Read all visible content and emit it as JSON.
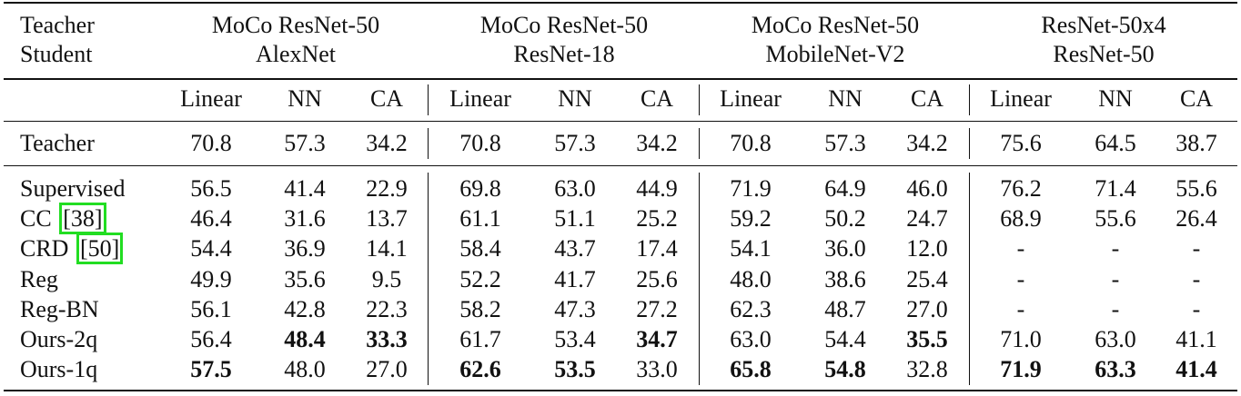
{
  "table": {
    "corner": [
      "Teacher",
      "Student"
    ],
    "groups": [
      {
        "teacher": "MoCo ResNet-50",
        "student": "AlexNet",
        "metrics": [
          "Linear",
          "NN",
          "CA"
        ]
      },
      {
        "teacher": "MoCo ResNet-50",
        "student": "ResNet-18",
        "metrics": [
          "Linear",
          "NN",
          "CA"
        ]
      },
      {
        "teacher": "MoCo ResNet-50",
        "student": "MobileNet-V2",
        "metrics": [
          "Linear",
          "NN",
          "CA"
        ]
      },
      {
        "teacher": "ResNet-50x4",
        "student": "ResNet-50",
        "metrics": [
          "Linear",
          "NN",
          "CA"
        ]
      }
    ],
    "teacher_row": {
      "label": "Teacher",
      "values": [
        "70.8",
        "57.3",
        "34.2",
        "70.8",
        "57.3",
        "34.2",
        "70.8",
        "57.3",
        "34.2",
        "75.6",
        "64.5",
        "38.7"
      ]
    },
    "rows": [
      {
        "label": "Supervised",
        "values": [
          "56.5",
          "41.4",
          "22.9",
          "69.8",
          "63.0",
          "44.9",
          "71.9",
          "64.9",
          "46.0",
          "76.2",
          "71.4",
          "55.6"
        ],
        "bold": []
      },
      {
        "label": "CC",
        "cite": "[38]",
        "values": [
          "46.4",
          "31.6",
          "13.7",
          "61.1",
          "51.1",
          "25.2",
          "59.2",
          "50.2",
          "24.7",
          "68.9",
          "55.6",
          "26.4"
        ],
        "bold": []
      },
      {
        "label": "CRD",
        "cite": "[50]",
        "values": [
          "54.4",
          "36.9",
          "14.1",
          "58.4",
          "43.7",
          "17.4",
          "54.1",
          "36.0",
          "12.0",
          "-",
          "-",
          "-"
        ],
        "bold": []
      },
      {
        "label": "Reg",
        "values": [
          "49.9",
          "35.6",
          "9.5",
          "52.2",
          "41.7",
          "25.6",
          "48.0",
          "38.6",
          "25.4",
          "-",
          "-",
          "-"
        ],
        "bold": []
      },
      {
        "label": "Reg-BN",
        "values": [
          "56.1",
          "42.8",
          "22.3",
          "58.2",
          "47.3",
          "27.2",
          "62.3",
          "48.7",
          "27.0",
          "-",
          "-",
          "-"
        ],
        "bold": []
      },
      {
        "label": "Ours-2q",
        "values": [
          "56.4",
          "48.4",
          "33.3",
          "61.7",
          "53.4",
          "34.7",
          "63.0",
          "54.4",
          "35.5",
          "71.0",
          "63.0",
          "41.1"
        ],
        "bold": [
          1,
          2,
          5,
          8
        ]
      },
      {
        "label": "Ours-1q",
        "values": [
          "57.5",
          "48.0",
          "27.0",
          "62.6",
          "53.5",
          "33.0",
          "65.8",
          "54.8",
          "32.8",
          "71.9",
          "63.3",
          "41.4"
        ],
        "bold": [
          0,
          3,
          4,
          6,
          7,
          9,
          10,
          11
        ]
      }
    ]
  }
}
